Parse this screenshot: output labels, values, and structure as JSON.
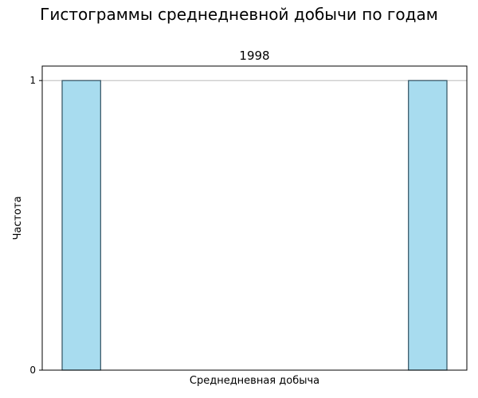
{
  "figure_title": "Гистограммы среднедневной добычи по годам",
  "chart_data": {
    "type": "bar",
    "subtitle": "1998",
    "xlabel": "Среднедневная добыча",
    "ylabel": "Частота",
    "ylim": [
      0,
      1.05
    ],
    "yticks": [
      0,
      1
    ],
    "bins": 10,
    "values": [
      1,
      0,
      0,
      0,
      0,
      0,
      0,
      0,
      0,
      1
    ],
    "bar_color": "#a8dcef",
    "bar_edge_color": "#2f4f5f",
    "grid": "horizontal",
    "x_tick_labels_visible": false
  }
}
